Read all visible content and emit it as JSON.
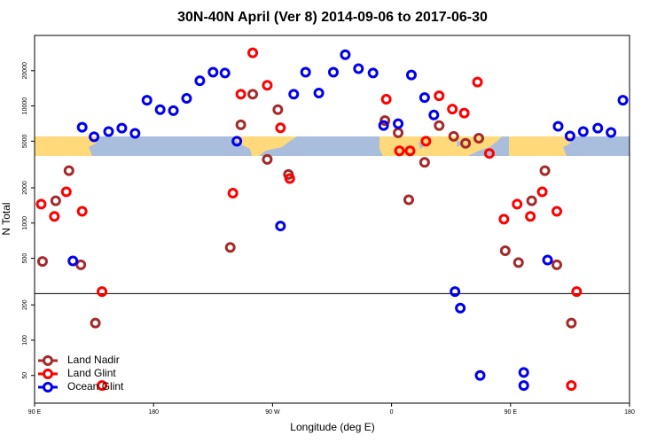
{
  "chart_data": {
    "type": "scatter",
    "title": "30N-40N April (Ver 8)   2014-09-06 to 2017-06-30",
    "x_label": "Longitude (deg E)",
    "y_label": "N Total",
    "xlim": [
      90,
      540
    ],
    "xticks": [
      {
        "value": 90,
        "label": "90 E"
      },
      180,
      {
        "value": 270,
        "label": "90 W"
      },
      {
        "value": 360,
        "label": "0"
      },
      {
        "value": 450,
        "label": "90 E"
      },
      {
        "value": 540,
        "label": "180"
      }
    ],
    "ylim": [
      29,
      40000
    ],
    "ylog": true,
    "yticks": [
      50,
      100,
      200,
      500,
      1000,
      2000,
      5000,
      10000,
      20000
    ],
    "hline": 250,
    "legend": "lower left",
    "series": [
      {
        "name": "Land Nadir",
        "color": "#a52a2a",
        "x": [
          96,
          106,
          116,
          125,
          136,
          238,
          246,
          255,
          266,
          274,
          282,
          355,
          365,
          373,
          385,
          396,
          407,
          416,
          426,
          446,
          456,
          466,
          476,
          485,
          496
        ],
        "values": [
          470,
          1550,
          2800,
          440,
          140,
          620,
          6900,
          12600,
          3500,
          9300,
          2600,
          7500,
          5900,
          1580,
          3300,
          6800,
          5500,
          4800,
          5300,
          580,
          460,
          1550,
          2800,
          440,
          140
        ]
      },
      {
        "name": "Land Glint",
        "color": "#ff0000",
        "x": [
          95,
          105,
          114,
          126,
          141,
          240,
          246,
          255,
          266,
          276,
          283,
          356,
          366,
          374,
          386,
          396,
          406,
          415,
          425,
          434,
          445,
          455,
          465,
          474,
          485,
          500,
          141,
          496
        ],
        "values": [
          1450,
          1140,
          1850,
          1260,
          260,
          1800,
          12600,
          28400,
          15000,
          6500,
          2400,
          11400,
          4140,
          4140,
          5000,
          12200,
          9400,
          8700,
          16000,
          3930,
          1080,
          1450,
          1140,
          1850,
          1260,
          260,
          41,
          41
        ]
      },
      {
        "name": "Ocean Glint",
        "color": "#0000ee",
        "x": [
          119,
          126,
          135,
          146,
          156,
          166,
          175,
          185,
          195,
          205,
          215,
          225,
          234,
          243,
          276,
          286,
          295,
          305,
          316,
          325,
          335,
          346,
          354,
          365,
          375,
          385,
          392,
          408,
          412,
          427,
          460,
          460,
          478,
          486,
          495,
          505,
          516,
          526,
          535
        ],
        "values": [
          475,
          6580,
          5450,
          6040,
          6470,
          5830,
          11200,
          9300,
          9120,
          11600,
          16400,
          19400,
          19100,
          5000,
          944,
          12600,
          19400,
          12900,
          19400,
          27400,
          20800,
          19100,
          6810,
          7050,
          18400,
          11800,
          8370,
          260,
          188,
          50,
          53,
          41,
          483,
          6700,
          5540,
          6040,
          6470,
          5940,
          11200
        ]
      }
    ]
  }
}
